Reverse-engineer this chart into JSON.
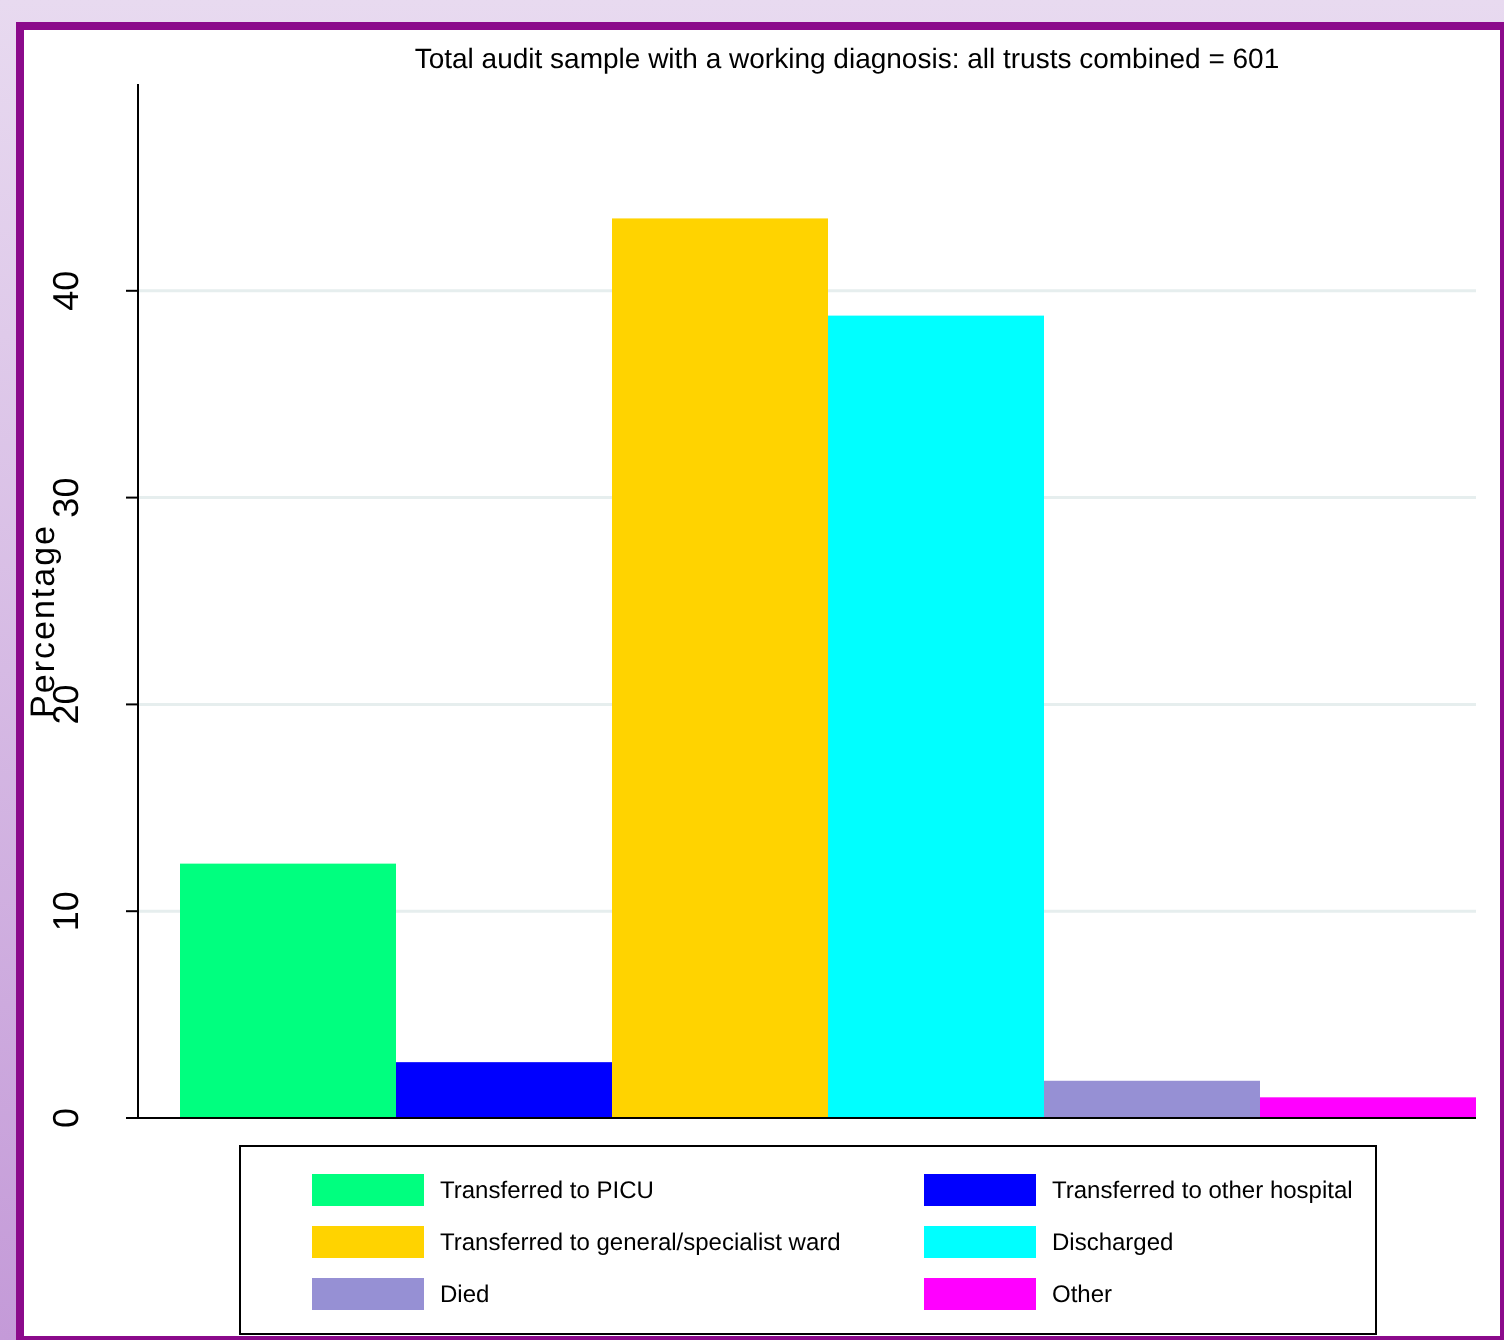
{
  "chart_data": {
    "type": "bar",
    "title": "Total audit sample with a working diagnosis: all trusts combined = 601",
    "ylabel": "Percentage",
    "categories": [
      null
    ],
    "series": [
      {
        "name": "Transferred to PICU",
        "color": "#00ff7f",
        "values": [
          12.3
        ]
      },
      {
        "name": "Transferred to other hospital",
        "color": "#0000ff",
        "values": [
          2.7
        ]
      },
      {
        "name": "Transferred to general/specialist ward",
        "color": "#ffd300",
        "values": [
          43.5
        ]
      },
      {
        "name": "Discharged",
        "color": "#00ffff",
        "values": [
          38.8
        ]
      },
      {
        "name": "Died",
        "color": "#9690d4",
        "values": [
          1.8
        ]
      },
      {
        "name": "Other",
        "color": "#ff00ff",
        "values": [
          1.0
        ]
      }
    ],
    "ylim": [
      0,
      50
    ],
    "yticks": [
      0,
      10,
      20,
      30,
      40
    ],
    "grid": "y",
    "legend": "bottom"
  }
}
